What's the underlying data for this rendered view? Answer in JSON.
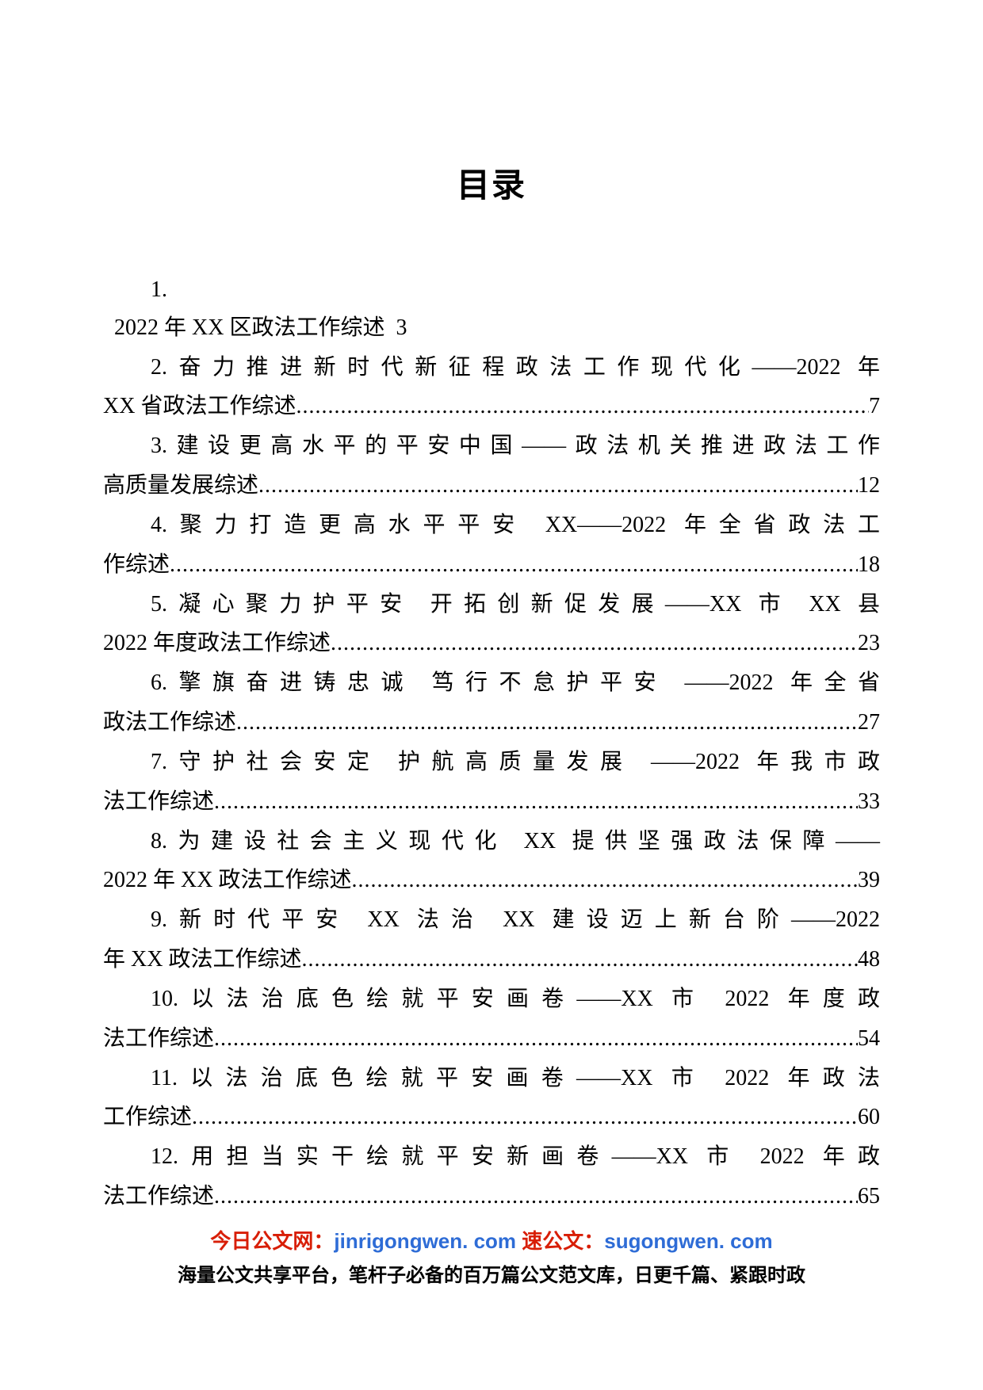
{
  "title": "目录",
  "toc": {
    "first_number": "1.",
    "first_text": "2022 年 XX 区政法工作综述  3",
    "items": [
      {
        "line1": "2.奋力推进新时代新征程政法工作现代化——2022 年",
        "line2_text": "XX 省政法工作综述",
        "page": "7"
      },
      {
        "line1": "3.建设更高水平的平安中国——政法机关推进政法工作",
        "line2_text": "高质量发展综述",
        "page": "12"
      },
      {
        "line1": "4.聚力打造更高水平平安 XX——2022 年全省政法工",
        "line2_text": "作综述",
        "page": "18"
      },
      {
        "line1": "5.凝心聚力护平安 开拓创新促发展——XX 市 XX 县",
        "line2_text": "2022 年度政法工作综述",
        "page": "23"
      },
      {
        "line1": "6.擎旗奋进铸忠诚 笃行不怠护平安 ——2022 年全省",
        "line2_text": "政法工作综述",
        "page": "27"
      },
      {
        "line1": "7.守护社会安定 护航高质量发展 ——2022 年我市政",
        "line2_text": "法工作综述",
        "page": "33"
      },
      {
        "line1": "8.为建设社会主义现代化 XX 提供坚强政法保障——",
        "line2_text": "2022 年 XX 政法工作综述",
        "page": "39"
      },
      {
        "line1": "9.新时代平安 XX 法治 XX 建设迈上新台阶——2022",
        "line2_text": "年 XX 政法工作综述",
        "page": "48"
      },
      {
        "line1": "10.以法治底色绘就平安画卷——XX 市 2022 年度政",
        "line2_text": "法工作综述",
        "page": "54"
      },
      {
        "line1": "11.以法治底色绘就平安画卷——XX 市 2022 年政法",
        "line2_text": "工作综述",
        "page": "60"
      },
      {
        "line1": "12.用担当实干绘就平安新画卷——XX 市 2022 年政",
        "line2_text": "法工作综述",
        "page": "65"
      }
    ]
  },
  "footer": {
    "brand1": "今日公文网：",
    "url1": "jinrigongwen. com",
    "brand2": "速公文：",
    "url2": "sugongwen. com",
    "tagline": "海量公文共享平台，笔杆子必备的百万篇公文范文库，日更千篇、紧跟时政"
  },
  "colors": {
    "red": "#d81e06",
    "blue": "#2e6cd6",
    "text": "#000000",
    "background": "#ffffff"
  },
  "typography": {
    "title_fontsize": 42,
    "body_fontsize": 28,
    "footer_fontsize_1": 26,
    "footer_fontsize_2": 24,
    "line_height": 1.78
  }
}
